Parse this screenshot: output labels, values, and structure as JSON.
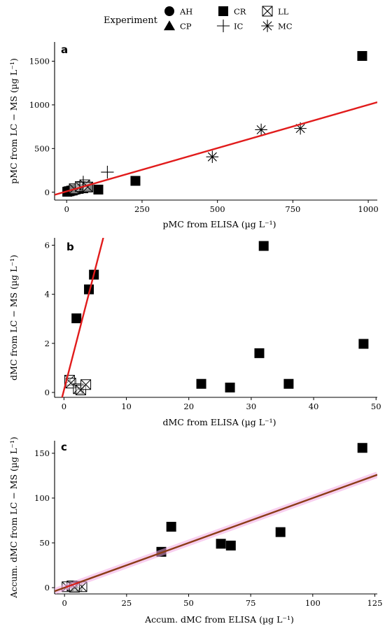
{
  "legend": {
    "title": "Experiment",
    "items": [
      {
        "label": "AH",
        "shape": "circle"
      },
      {
        "label": "CR",
        "shape": "square"
      },
      {
        "label": "LL",
        "shape": "boxx"
      },
      {
        "label": "CP",
        "shape": "triangle"
      },
      {
        "label": "IC",
        "shape": "plus"
      },
      {
        "label": "MC",
        "shape": "asterisk"
      }
    ]
  },
  "chart_data": [
    {
      "type": "scatter",
      "panel": "a",
      "xlabel": "pMC from ELISA (µg L⁻¹)",
      "ylabel": "pMC from LC − MS (µg L⁻¹)",
      "xlim": [
        -40,
        1030
      ],
      "ylim": [
        -90,
        1720
      ],
      "xticks": [
        0,
        250,
        500,
        750,
        1000
      ],
      "yticks": [
        0,
        500,
        1000,
        1500
      ],
      "series": [
        {
          "name": "CR",
          "shape": "square",
          "points": [
            [
              2,
              5
            ],
            [
              6,
              10
            ],
            [
              10,
              12
            ],
            [
              15,
              18
            ],
            [
              20,
              20
            ],
            [
              25,
              28
            ],
            [
              30,
              32
            ],
            [
              40,
              38
            ],
            [
              55,
              45
            ],
            [
              70,
              55
            ],
            [
              105,
              30
            ],
            [
              228,
              130
            ],
            [
              980,
              1560
            ]
          ]
        },
        {
          "name": "LL",
          "shape": "boxx",
          "points": [
            [
              25,
              40
            ],
            [
              45,
              65
            ],
            [
              60,
              85
            ],
            [
              70,
              60
            ]
          ]
        },
        {
          "name": "IC",
          "shape": "plus",
          "points": [
            [
              135,
              230
            ],
            [
              55,
              115
            ]
          ]
        },
        {
          "name": "MC",
          "shape": "asterisk",
          "points": [
            [
              483,
              405
            ],
            [
              645,
              715
            ],
            [
              775,
              730
            ]
          ]
        }
      ],
      "fit_lines": [
        {
          "x": [
            -40,
            1030
          ],
          "y": [
            -30,
            1030
          ],
          "color": "#e11b1b"
        }
      ]
    },
    {
      "type": "scatter",
      "panel": "b",
      "xlabel": "dMC from ELISA (µg L⁻¹)",
      "ylabel": "dMC from LC − MS (µg L⁻¹)",
      "xlim": [
        -1.5,
        50.2
      ],
      "ylim": [
        -0.2,
        6.3
      ],
      "xticks": [
        0,
        10,
        20,
        30,
        40,
        50
      ],
      "yticks": [
        0,
        2,
        4,
        6
      ],
      "series": [
        {
          "name": "CR",
          "shape": "square",
          "points": [
            [
              2,
              3.02
            ],
            [
              4,
              4.2
            ],
            [
              4.8,
              4.8
            ],
            [
              32,
              5.97
            ],
            [
              48,
              1.98
            ],
            [
              31.3,
              1.6
            ],
            [
              22,
              0.35
            ],
            [
              26.6,
              0.2
            ],
            [
              36,
              0.35
            ]
          ]
        },
        {
          "name": "LL",
          "shape": "boxx",
          "points": [
            [
              0.9,
              0.5
            ],
            [
              1.1,
              0.38
            ],
            [
              2.3,
              0.15
            ],
            [
              2.7,
              0.1
            ],
            [
              3.5,
              0.32
            ]
          ]
        }
      ],
      "fit_lines": [
        {
          "x": [
            -0.3,
            6.3
          ],
          "y": [
            -0.2,
            6.3
          ],
          "color": "#e11b1b"
        }
      ]
    },
    {
      "type": "scatter",
      "panel": "c",
      "xlabel": "Accum. dMC from ELISA (µg L⁻¹)",
      "ylabel": "Accum. dMC from LC − MS (µg L⁻¹)",
      "xlim": [
        -4,
        126
      ],
      "ylim": [
        -7,
        164
      ],
      "xticks": [
        0,
        25,
        50,
        75,
        100,
        125
      ],
      "yticks": [
        0,
        50,
        100,
        150
      ],
      "series": [
        {
          "name": "CR",
          "shape": "square",
          "points": [
            [
              120,
              156
            ],
            [
              43,
              68
            ],
            [
              39,
              40
            ],
            [
              63,
              49
            ],
            [
              67,
              47
            ],
            [
              87,
              62
            ]
          ]
        },
        {
          "name": "LL",
          "shape": "boxx",
          "points": [
            [
              1,
              1
            ],
            [
              3,
              2
            ],
            [
              5,
              1.5
            ],
            [
              7,
              1
            ],
            [
              4,
              0.5
            ]
          ]
        }
      ],
      "fit_lines": [
        {
          "x": [
            -4,
            126
          ],
          "y": [
            -4,
            126
          ],
          "color": "#f2a8e2",
          "width": 9
        },
        {
          "x": [
            -4,
            126
          ],
          "y": [
            -4,
            126
          ],
          "color": "#8b3b16",
          "width": 2.4
        },
        {
          "x": [
            0.5,
            6
          ],
          "y": [
            0.5,
            6
          ],
          "color": "#e11b1b",
          "width": 2
        }
      ]
    }
  ]
}
